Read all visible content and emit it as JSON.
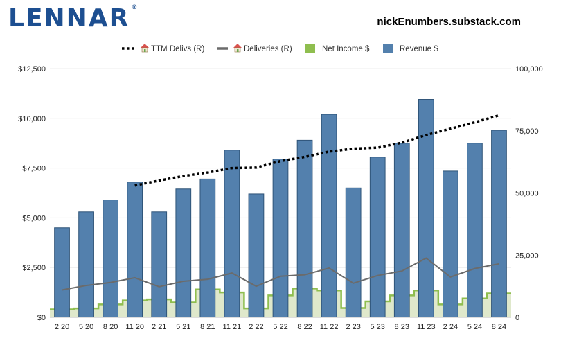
{
  "header": {
    "logo_text": "LENNAR",
    "logo_mark": "®",
    "source": "nickEnumbers.substack.com"
  },
  "colors": {
    "logo": "#1d4f91",
    "revenue_bar": "#5380ad",
    "revenue_bar_edge": "#2f5478",
    "net_income_line": "#8fbe4f",
    "net_income_fill": "#dfe8cb",
    "deliveries_line": "#6b6b6b",
    "ttm_line": "#000000",
    "grid": "#ececec"
  },
  "chart_data": {
    "type": "bar",
    "categories": [
      "2 20",
      "5 20",
      "8 20",
      "11 20",
      "2 21",
      "5 21",
      "8 21",
      "11 21",
      "2 22",
      "5 22",
      "8 22",
      "11 22",
      "2 23",
      "5 23",
      "8 23",
      "11 23",
      "2 24",
      "5 24",
      "8 24"
    ],
    "y_left": {
      "ylim": [
        0,
        12500
      ],
      "ticks": [
        0,
        2500,
        5000,
        7500,
        10000,
        12500
      ],
      "tick_labels": [
        "$0",
        "$2,500",
        "$5,000",
        "$7,500",
        "$10,000",
        "$12,500"
      ]
    },
    "y_right": {
      "ylim": [
        0,
        100000
      ],
      "ticks": [
        0,
        25000,
        50000,
        75000,
        100000
      ],
      "tick_labels": [
        "0",
        "25,000",
        "50,000",
        "75,000",
        "100,000"
      ]
    },
    "grid": true,
    "legend_position": "top-center",
    "series": [
      {
        "name": "TTM Delivs (R)",
        "legend_icon": "house-icon",
        "style": "dotted-line",
        "axis": "right",
        "values": [
          null,
          null,
          null,
          53000,
          55000,
          56800,
          58200,
          60000,
          60200,
          62800,
          64500,
          66600,
          67800,
          68200,
          70200,
          73300,
          75800,
          78400,
          81200
        ]
      },
      {
        "name": "Deliveries (R)",
        "legend_icon": "house-icon",
        "style": "line",
        "axis": "right",
        "values": [
          11000,
          12800,
          14000,
          15900,
          12300,
          14500,
          15300,
          17800,
          12500,
          16500,
          17100,
          19800,
          13700,
          16800,
          18600,
          23800,
          16200,
          19600,
          21500
        ]
      },
      {
        "name": "Net Income $",
        "style": "step-area",
        "axis": "left",
        "values": [
          400,
          450,
          650,
          850,
          900,
          750,
          1400,
          1250,
          450,
          1100,
          1450,
          1350,
          470,
          800,
          1100,
          1350,
          650,
          950,
          1200
        ]
      },
      {
        "name": "Revenue $",
        "style": "bar",
        "axis": "left",
        "values": [
          4500,
          5300,
          5900,
          6800,
          5300,
          6450,
          6950,
          8400,
          6200,
          7950,
          8900,
          10200,
          6500,
          8050,
          8750,
          10950,
          7350,
          8750,
          9400
        ]
      }
    ]
  }
}
